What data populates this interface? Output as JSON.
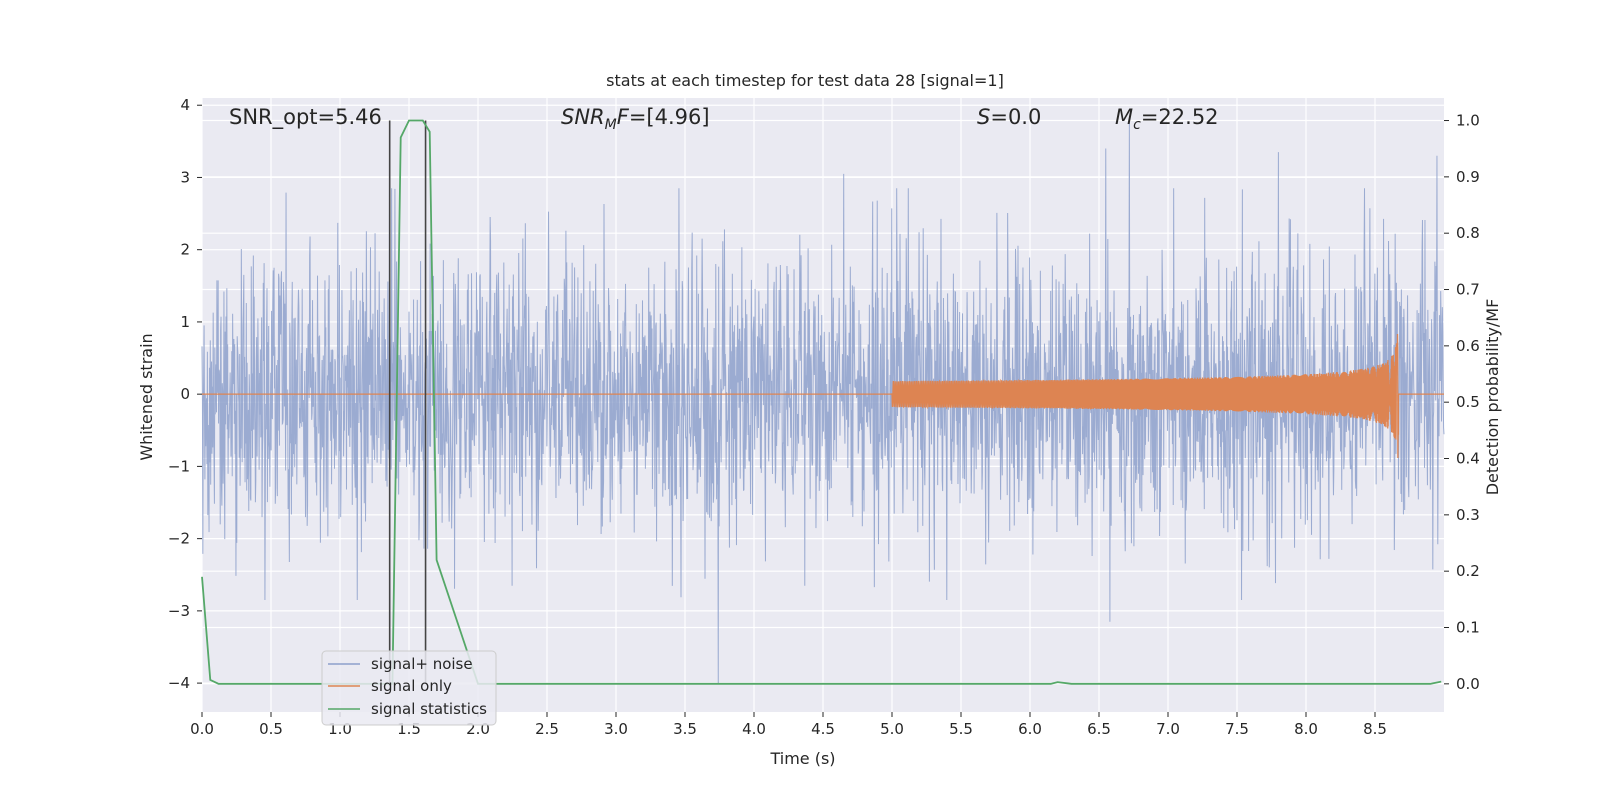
{
  "chart_data": {
    "type": "line",
    "title": "stats at each timestep for test data 28 [signal=1]",
    "xlabel": "Time (s)",
    "ylabel": "Whitened strain",
    "ylabel_right": "Detection probability/MF",
    "xlim": [
      0,
      9.0
    ],
    "ylim": [
      -4.4,
      4.1
    ],
    "ylim_right": [
      -0.05,
      1.04
    ],
    "x_ticks": [
      "0.0",
      "0.5",
      "1.0",
      "1.5",
      "2.0",
      "2.5",
      "3.0",
      "3.5",
      "4.0",
      "4.5",
      "5.0",
      "5.5",
      "6.0",
      "6.5",
      "7.0",
      "7.5",
      "8.0",
      "8.5"
    ],
    "y_ticks": [
      "−4",
      "−3",
      "−2",
      "−1",
      "0",
      "1",
      "2",
      "3",
      "4"
    ],
    "y_ticks_right": [
      "0.0",
      "0.1",
      "0.2",
      "0.3",
      "0.4",
      "0.5",
      "0.6",
      "0.7",
      "0.8",
      "0.9",
      "1.0"
    ],
    "annotations": {
      "snr_opt": "SNR_opt=5.46",
      "snr_mf_main": "SNR",
      "snr_mf_sub": "M",
      "snr_mf_f": "F",
      "snr_mf_value": "=[4.96]",
      "s_symbol": "S",
      "s_value": "=0.0",
      "mc_symbol": "M",
      "mc_sub": "c",
      "mc_value": "=22.52"
    },
    "legend_position": "lower-left",
    "series": [
      {
        "name": "signal+ noise",
        "color": "#8da0cb",
        "noise_sigma": 0.95,
        "peaks": [
          {
            "x": 1.36,
            "y": 3.7
          },
          {
            "x": 3.74,
            "y": -4.0
          },
          {
            "x": 4.65,
            "y": 3.05
          },
          {
            "x": 6.55,
            "y": 3.4
          },
          {
            "x": 6.72,
            "y": 3.75
          },
          {
            "x": 6.58,
            "y": -3.15
          },
          {
            "x": 7.8,
            "y": 3.35
          },
          {
            "x": 8.95,
            "y": 3.3
          }
        ]
      },
      {
        "name": "signal only",
        "color": "#dd8452",
        "chirp_start_x": 5.0,
        "chirp_end_x": 8.67,
        "chirp_peak_amplitude": 1.0
      },
      {
        "name": "signal statistics",
        "color": "#55a868",
        "axis": "right",
        "x": [
          0.0,
          0.06,
          0.12,
          0.5,
          1.0,
          1.3,
          1.38,
          1.44,
          1.5,
          1.6,
          1.65,
          1.7,
          2.0,
          4.0,
          6.0,
          6.15,
          6.2,
          6.3,
          7.0,
          8.0,
          8.9,
          8.98
        ],
        "y": [
          0.19,
          0.007,
          0.0,
          0.0,
          0.0,
          0.0,
          0.0,
          0.97,
          1.0,
          1.0,
          0.98,
          0.22,
          0.0,
          0.0,
          0.0,
          0.0,
          0.003,
          0.0,
          0.0,
          0.0,
          0.0,
          0.004
        ]
      }
    ],
    "vertical_markers": {
      "color": "#444444",
      "x": [
        1.36,
        1.62
      ],
      "y_range_right": [
        0.0,
        1.0
      ]
    }
  }
}
